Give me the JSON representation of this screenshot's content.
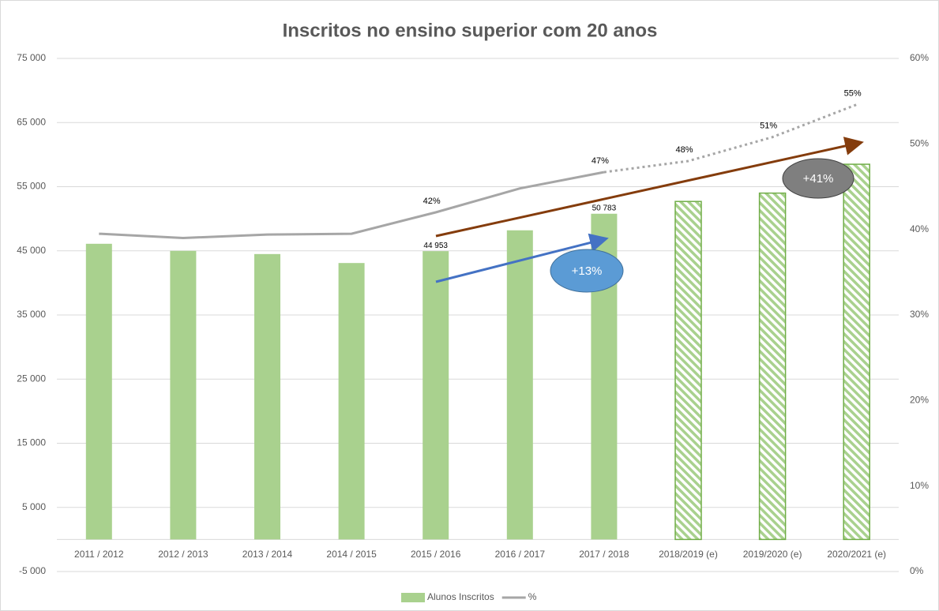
{
  "chart_data": {
    "type": "bar_line",
    "title": "Inscritos no ensino superior com 20 anos",
    "categories": [
      "2011 / 2012",
      "2012 / 2013",
      "2013 / 2014",
      "2014 / 2015",
      "2015 / 2016",
      "2016 / 2017",
      "2017 / 2018",
      "2018/2019 (e)",
      "2019/2020 (e)",
      "2020/2021 (e)"
    ],
    "forecast_start": 7,
    "series": [
      {
        "name": "Alunos Inscritos",
        "type": "bar",
        "color": "#a9d18e",
        "edge_color": "#70ad47",
        "values": [
          46100,
          45000,
          44500,
          43100,
          44953,
          48200,
          50783,
          52700,
          54000,
          58500
        ],
        "value_labels": [
          null,
          null,
          null,
          null,
          "44 953",
          null,
          "50 783",
          null,
          null,
          null
        ]
      },
      {
        "name": "%",
        "type": "line",
        "axis": "y2",
        "color": "#a6a6a6",
        "values": [
          39.5,
          39,
          39.4,
          39.5,
          42,
          44.8,
          46.7,
          48,
          50.8,
          54.6
        ],
        "value_labels": [
          null,
          null,
          null,
          null,
          "42%",
          null,
          "47%",
          "48%",
          "51%",
          "55%"
        ]
      }
    ],
    "ylim": [
      -5000,
      75000
    ],
    "yticks": [
      {
        "value": -5000,
        "label": "-5 000"
      },
      {
        "value": 5000,
        "label": "5 000"
      },
      {
        "value": 15000,
        "label": "15 000"
      },
      {
        "value": 25000,
        "label": "25 000"
      },
      {
        "value": 35000,
        "label": "35 000"
      },
      {
        "value": 45000,
        "label": "45 000"
      },
      {
        "value": 55000,
        "label": "55 000"
      },
      {
        "value": 65000,
        "label": "65 000"
      },
      {
        "value": 75000,
        "label": "75 000"
      }
    ],
    "y2lim": [
      0,
      60
    ],
    "y2ticks": [
      {
        "value": 0,
        "label": "0%"
      },
      {
        "value": 10,
        "label": "10%"
      },
      {
        "value": 20,
        "label": "20%"
      },
      {
        "value": 30,
        "label": "30%"
      },
      {
        "value": 40,
        "label": "40%"
      },
      {
        "value": 50,
        "label": "50%"
      },
      {
        "value": 60,
        "label": "60%"
      }
    ],
    "grid": true,
    "legend": "bottom",
    "annotations": [
      {
        "text": "+13%"
      },
      {
        "text": "+41%"
      }
    ]
  }
}
